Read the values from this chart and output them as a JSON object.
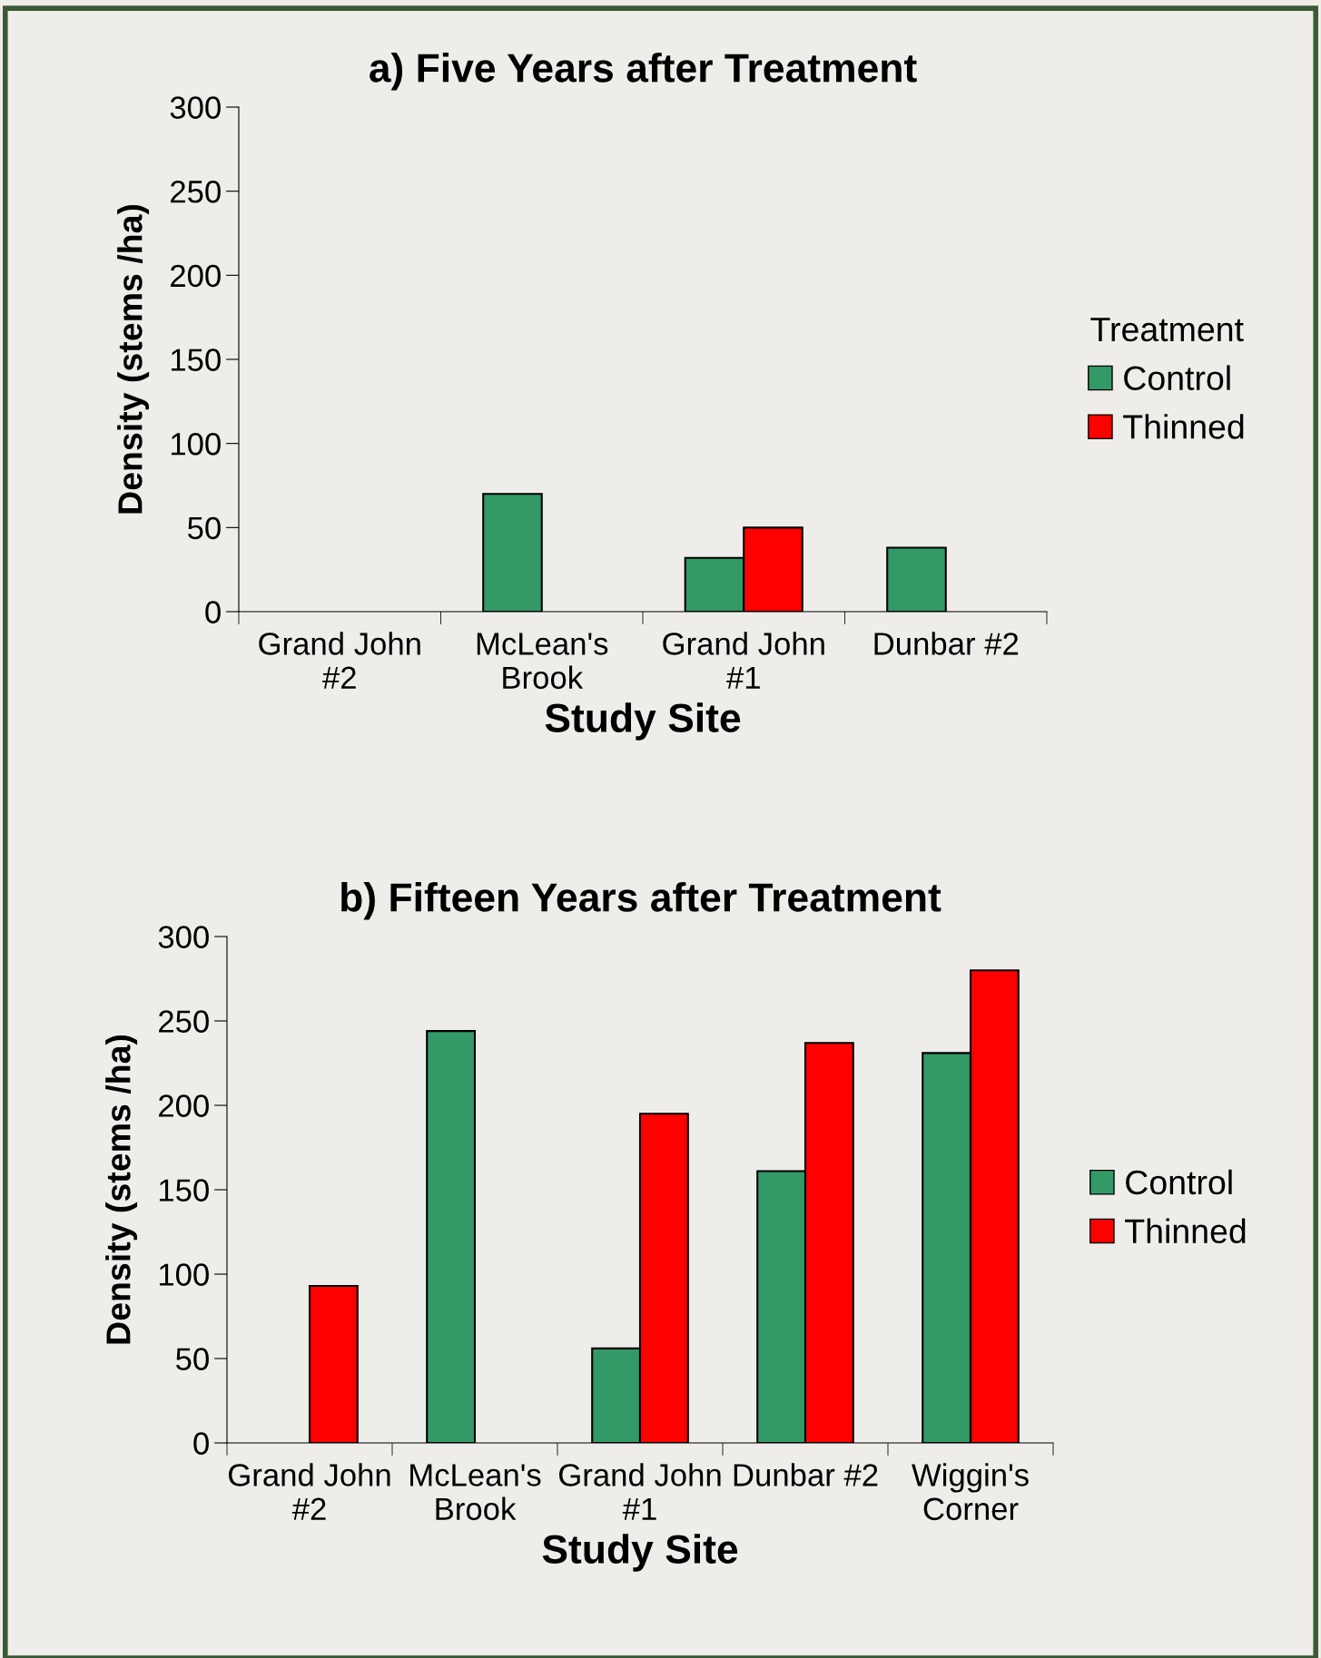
{
  "chart_data": [
    {
      "type": "bar",
      "title": "a) Five Years after Treatment",
      "xlabel": "Study Site",
      "ylabel": "Density (stems /ha)",
      "legend_title": "Treatment",
      "categories": [
        "Grand John\n#2",
        "McLean's\nBrook",
        "Grand John\n#1",
        "Dunbar #2"
      ],
      "series": [
        {
          "name": "Control",
          "color": "#339966",
          "values": [
            null,
            70,
            32,
            38
          ]
        },
        {
          "name": "Thinned",
          "color": "#ff0000",
          "values": [
            null,
            null,
            50,
            null
          ]
        }
      ],
      "ylim": [
        0,
        300
      ],
      "yticks": [
        0,
        50,
        100,
        150,
        200,
        250,
        300
      ],
      "grid": false,
      "legend": "right"
    },
    {
      "type": "bar",
      "title": "b) Fifteen Years after Treatment",
      "xlabel": "Study Site",
      "ylabel": "Density (stems /ha)",
      "categories": [
        "Grand John\n#2",
        "McLean's\nBrook",
        "Grand John\n#1",
        "Dunbar #2",
        "Wiggin's\nCorner"
      ],
      "series": [
        {
          "name": "Control",
          "color": "#339966",
          "values": [
            null,
            244,
            56,
            161,
            231
          ]
        },
        {
          "name": "Thinned",
          "color": "#ff0000",
          "values": [
            93,
            null,
            195,
            237,
            280
          ]
        }
      ],
      "ylim": [
        0,
        300
      ],
      "yticks": [
        0,
        50,
        100,
        150,
        200,
        250,
        300
      ],
      "grid": false,
      "legend": "right"
    }
  ]
}
